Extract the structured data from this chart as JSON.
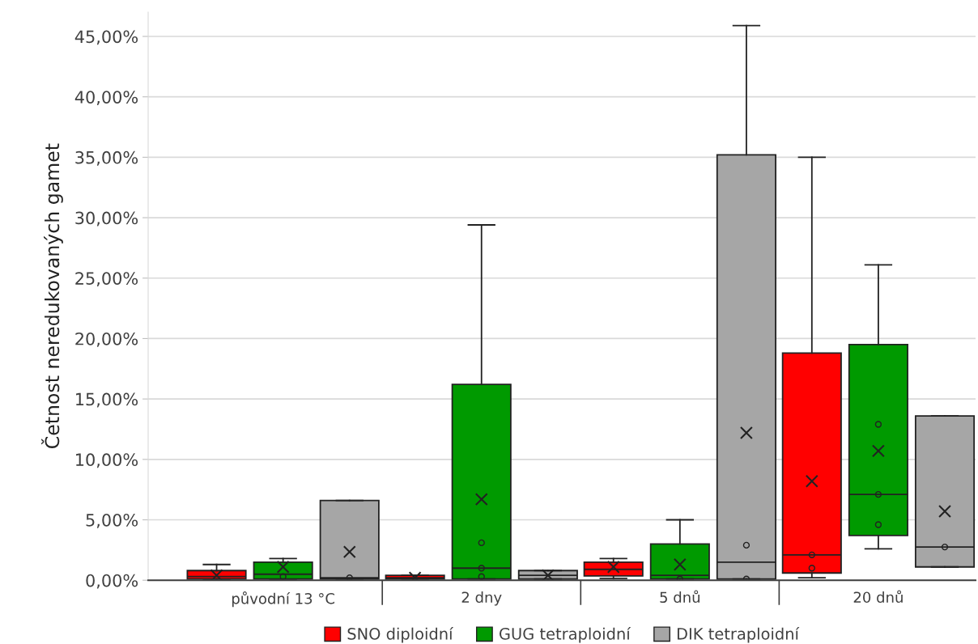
{
  "chart_data": {
    "type": "box",
    "ylabel": "Četnost neredukovaných gamet",
    "categories": [
      "původní 13 °C",
      "2 dny",
      "5 dnů",
      "20 dnů"
    ],
    "series": [
      {
        "name": "SNO diploidní",
        "color": "#ff0000",
        "boxes": [
          {
            "low": 0,
            "q1": 0.1,
            "median": 0.3,
            "q3": 0.8,
            "high": 1.3,
            "mean": 0.4
          },
          {
            "low": 0.1,
            "q1": 0.1,
            "median": 0.2,
            "q3": 0.4,
            "high": 0.4,
            "mean": 0.2
          },
          {
            "low": 0.15,
            "q1": 0.35,
            "median": 0.9,
            "q3": 1.5,
            "high": 1.8,
            "mean": 1.1
          },
          {
            "low": 0.2,
            "q1": 0.6,
            "median": 2.1,
            "q3": 18.8,
            "high": 35.0,
            "mean": 8.2,
            "outliers": [
              2.1,
              1.0
            ]
          }
        ]
      },
      {
        "name": "GUG tetraploidní",
        "color": "#009a00",
        "boxes": [
          {
            "low": 0,
            "q1": 0.1,
            "median": 0.5,
            "q3": 1.5,
            "high": 1.8,
            "mean": 1.1,
            "outliers": [
              0.3
            ]
          },
          {
            "low": 0.1,
            "q1": 0.1,
            "median": 1.0,
            "q3": 16.2,
            "high": 29.4,
            "mean": 6.7,
            "outliers": [
              3.1,
              1.0,
              0.3
            ]
          },
          {
            "low": 0.1,
            "q1": 0.1,
            "median": 0.4,
            "q3": 3.0,
            "high": 5.0,
            "mean": 1.3,
            "outliers": [
              0.1
            ]
          },
          {
            "low": 2.6,
            "q1": 3.7,
            "median": 7.1,
            "q3": 19.5,
            "high": 26.1,
            "mean": 10.7,
            "outliers": [
              12.9,
              7.1,
              4.6
            ]
          }
        ]
      },
      {
        "name": "DIK tetraploidní",
        "color": "#a6a6a6",
        "boxes": [
          {
            "low": 0.1,
            "q1": 0.1,
            "median": 0.2,
            "q3": 6.6,
            "high": 6.6,
            "mean": 2.35,
            "outliers": [
              0.2
            ]
          },
          {
            "low": 0.1,
            "q1": 0.1,
            "median": 0.4,
            "q3": 0.8,
            "high": 0.8,
            "mean": 0.4
          },
          {
            "low": 0.1,
            "q1": 0.1,
            "median": 1.5,
            "q3": 35.2,
            "high": 45.9,
            "mean": 12.2,
            "outliers": [
              2.9,
              0.1
            ]
          },
          {
            "low": 1.1,
            "q1": 1.1,
            "median": 2.75,
            "q3": 13.6,
            "high": 13.6,
            "mean": 5.7,
            "outliers": [
              2.75
            ]
          }
        ]
      }
    ],
    "ylim": [
      0,
      47
    ],
    "yticks": [
      {
        "value": 0,
        "label": "0,00%"
      },
      {
        "value": 5,
        "label": "5,00%"
      },
      {
        "value": 10,
        "label": "10,00%"
      },
      {
        "value": 15,
        "label": "15,00%"
      },
      {
        "value": 20,
        "label": "20,00%"
      },
      {
        "value": 25,
        "label": "25,00%"
      },
      {
        "value": 30,
        "label": "30,00%"
      },
      {
        "value": 35,
        "label": "35,00%"
      },
      {
        "value": 40,
        "label": "40,00%"
      },
      {
        "value": 45,
        "label": "45,00%"
      }
    ],
    "grid": "y",
    "legend": "bottom",
    "marker": "cross"
  }
}
